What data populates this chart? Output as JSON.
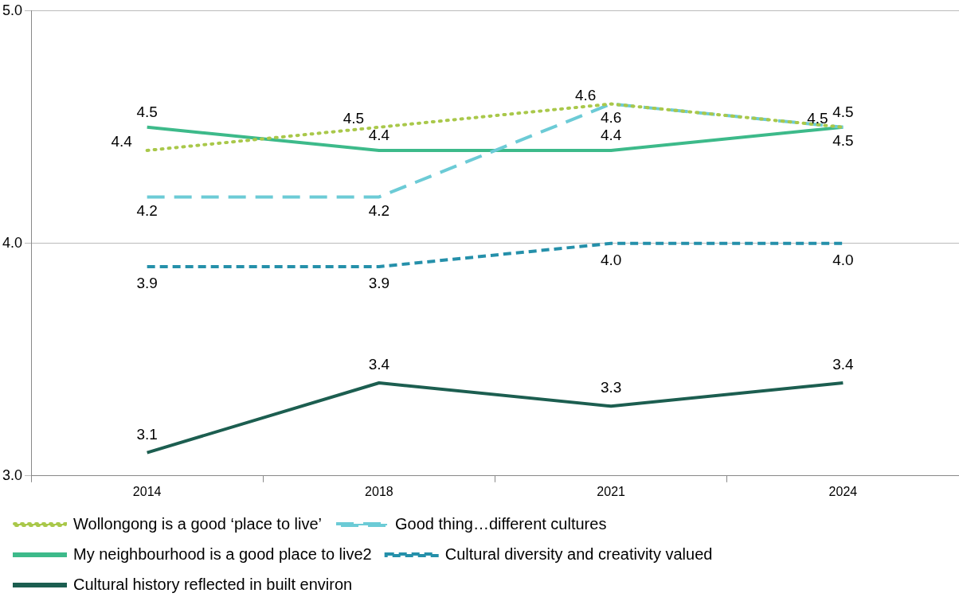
{
  "chart_data": {
    "type": "line",
    "categories": [
      "2014",
      "2018",
      "2021",
      "2024"
    ],
    "series": [
      {
        "name": "Wollongong is a good ‘place to live’",
        "color": "#a9c84a",
        "values": [
          4.4,
          4.5,
          4.6,
          4.5
        ],
        "value_labels": [
          "4.4",
          "4.5",
          "4.6",
          "4.5"
        ],
        "line_style": "dotted"
      },
      {
        "name": "Good thing…different cultures",
        "color": "#6ccbd6",
        "values": [
          4.2,
          4.2,
          4.6,
          4.5
        ],
        "value_labels": [
          "4.2",
          "4.2",
          "4.6",
          "4.5"
        ],
        "line_style": "dashed"
      },
      {
        "name": "My neighbourhood is a good place to live2",
        "color": "#3dba8a",
        "values": [
          4.5,
          4.4,
          4.4,
          4.5
        ],
        "value_labels": [
          "4.5",
          "4.4",
          "4.4",
          "4.5"
        ],
        "line_style": "solid"
      },
      {
        "name": "Cultural diversity and creativity valued",
        "color": "#2590aa",
        "values": [
          3.9,
          3.9,
          4.0,
          4.0
        ],
        "value_labels": [
          "3.9",
          "3.9",
          "4.0",
          "4.0"
        ],
        "line_style": "dashed"
      },
      {
        "name": "Cultural history reflected in built environ",
        "color": "#1c5e50",
        "values": [
          3.1,
          3.4,
          3.3,
          3.4
        ],
        "value_labels": [
          "3.1",
          "3.4",
          "3.3",
          "3.4"
        ],
        "line_style": "solid"
      }
    ],
    "ylim": [
      3.0,
      5.0
    ],
    "yticks": [
      {
        "value": 3,
        "label": "3.0"
      },
      {
        "value": 4,
        "label": "4.0"
      },
      {
        "value": 5,
        "label": "5.0"
      }
    ],
    "grid": "y",
    "legend": "bottom",
    "marker": "none"
  }
}
